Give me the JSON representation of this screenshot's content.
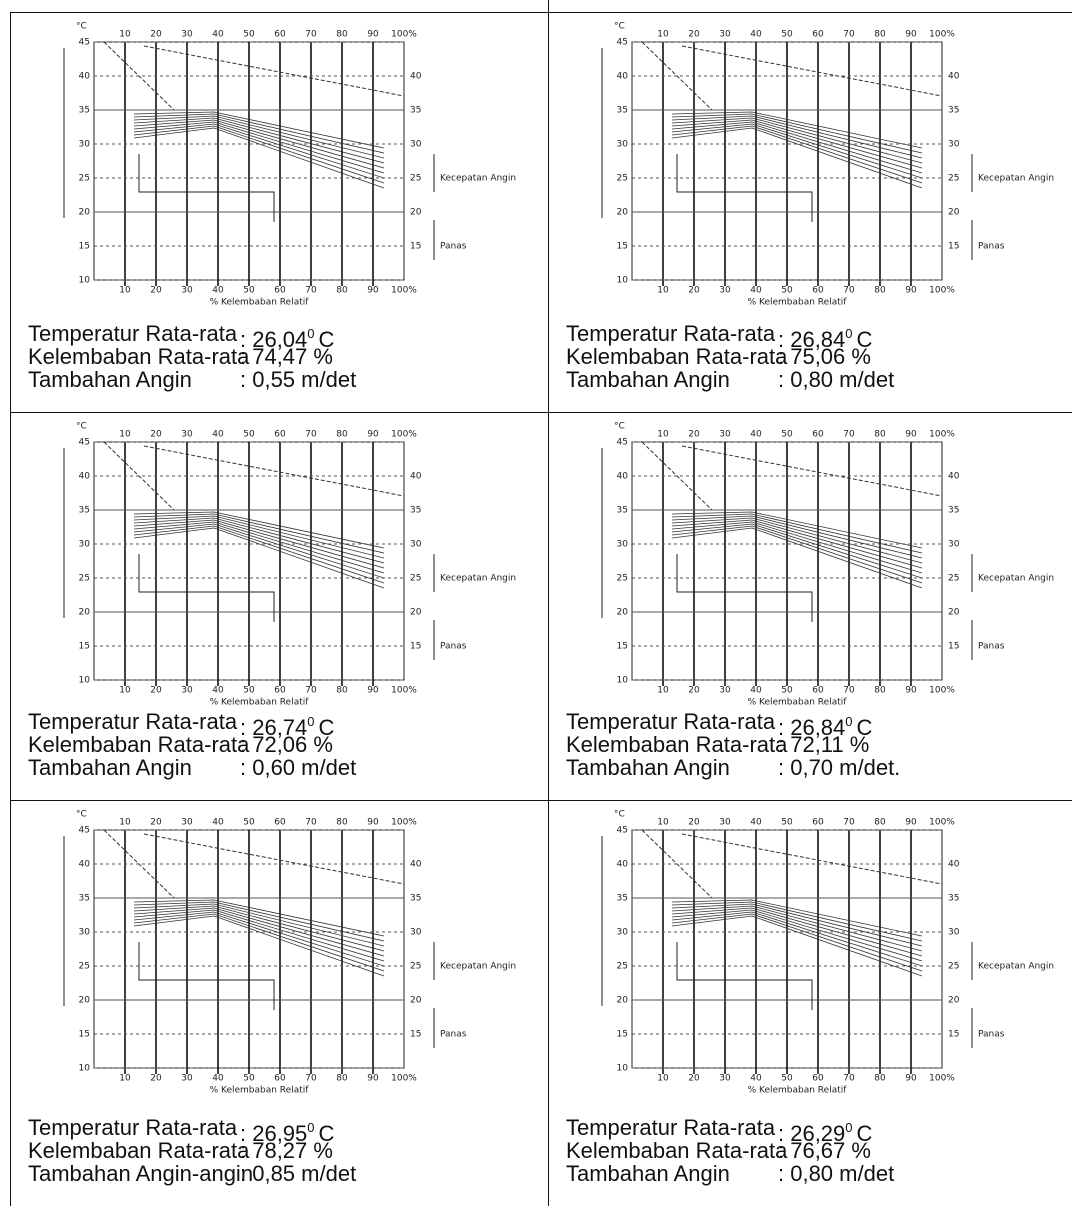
{
  "chart": {
    "unit": "°C",
    "x_ticks": [
      "10",
      "20",
      "30",
      "40",
      "50",
      "60",
      "70",
      "80",
      "90",
      "100%"
    ],
    "y_ticks": [
      "45",
      "40",
      "35",
      "30",
      "25",
      "20",
      "15",
      "10"
    ],
    "right_ticks": [
      "40",
      "35",
      "30",
      "25",
      "20",
      "15"
    ],
    "x_label": "% Kelembaban Relatif",
    "wind_label": "Kecepatan Angin",
    "heat_label": "Panas"
  },
  "cells": [
    {
      "rows": [
        {
          "label": "Temperatur Rata-rata",
          "value": ": 26,04",
          "sup": "0",
          "unit": "C"
        },
        {
          "label": "Kelembaban Rata-rata",
          "value": ": 74,47 %"
        },
        {
          "label": "Tambahan Angin",
          "value": ": 0,55 m/det"
        }
      ]
    },
    {
      "rows": [
        {
          "label": "Temperatur Rata-rata",
          "value": ": 26,84",
          "sup": "0",
          "unit": "C"
        },
        {
          "label": "Kelembaban Rata-rata",
          "value": ": 75,06 %"
        },
        {
          "label": "Tambahan Angin",
          "value": ": 0,80 m/det"
        }
      ]
    },
    {
      "rows": [
        {
          "label": "Temperatur Rata-rata",
          "value": ": 26,74",
          "sup": "0",
          "unit": "C"
        },
        {
          "label": "Kelembaban Rata-rata",
          "value": ": 72,06 %"
        },
        {
          "label": "Tambahan Angin",
          "value": ": 0,60 m/det"
        }
      ]
    },
    {
      "rows": [
        {
          "label": "Temperatur Rata-rata",
          "value": ": 26,84",
          "sup": "0",
          "unit": "C"
        },
        {
          "label": "Kelembaban Rata-rata",
          "value": ": 72,11 %"
        },
        {
          "label": "Tambahan Angin",
          "value": ": 0,70 m/det."
        }
      ]
    },
    {
      "rows": [
        {
          "label": "Temperatur Rata-rata",
          "value": ": 26,95",
          "sup": "0",
          "unit": "C"
        },
        {
          "label": "Kelembaban Rata-rata",
          "value": ": 78,27 %"
        },
        {
          "label": "Tambahan Angin-angin",
          "value": ": 0,85 m/det"
        }
      ]
    },
    {
      "rows": [
        {
          "label": "Temperatur Rata-rata",
          "value": ": 26,29",
          "sup": "0",
          "unit": "C"
        },
        {
          "label": "Kelembaban Rata-rata",
          "value": ": 76,67 %"
        },
        {
          "label": "Tambahan Angin",
          "value": ": 0,80 m/det"
        }
      ]
    }
  ]
}
